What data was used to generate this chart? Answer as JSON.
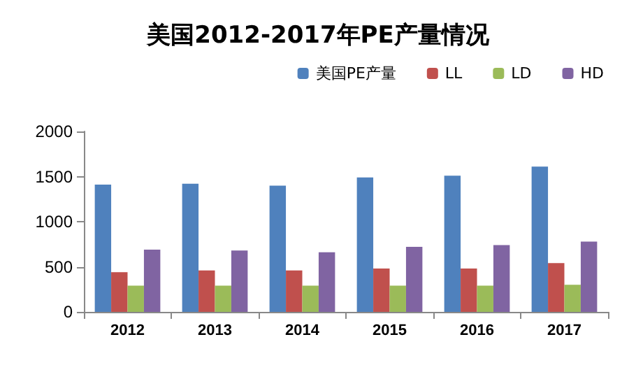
{
  "chart_data": {
    "type": "bar",
    "title": "美国2012-2017年PE产量情况",
    "categories": [
      "2012",
      "2013",
      "2014",
      "2015",
      "2016",
      "2017"
    ],
    "series": [
      {
        "name": "美国PE产量",
        "color": "#4f81bd",
        "values": [
          1410,
          1420,
          1400,
          1490,
          1510,
          1610
        ]
      },
      {
        "name": "LL",
        "color": "#c0504d",
        "values": [
          440,
          460,
          460,
          480,
          480,
          540
        ]
      },
      {
        "name": "LD",
        "color": "#9bbb59",
        "values": [
          290,
          290,
          290,
          290,
          290,
          300
        ]
      },
      {
        "name": "HD",
        "color": "#8064a2",
        "values": [
          690,
          680,
          660,
          720,
          740,
          780
        ]
      }
    ],
    "ylim": [
      0,
      2000
    ],
    "yticks": [
      0,
      500,
      1000,
      1500,
      2000
    ],
    "grid": false,
    "legend": "top right"
  }
}
